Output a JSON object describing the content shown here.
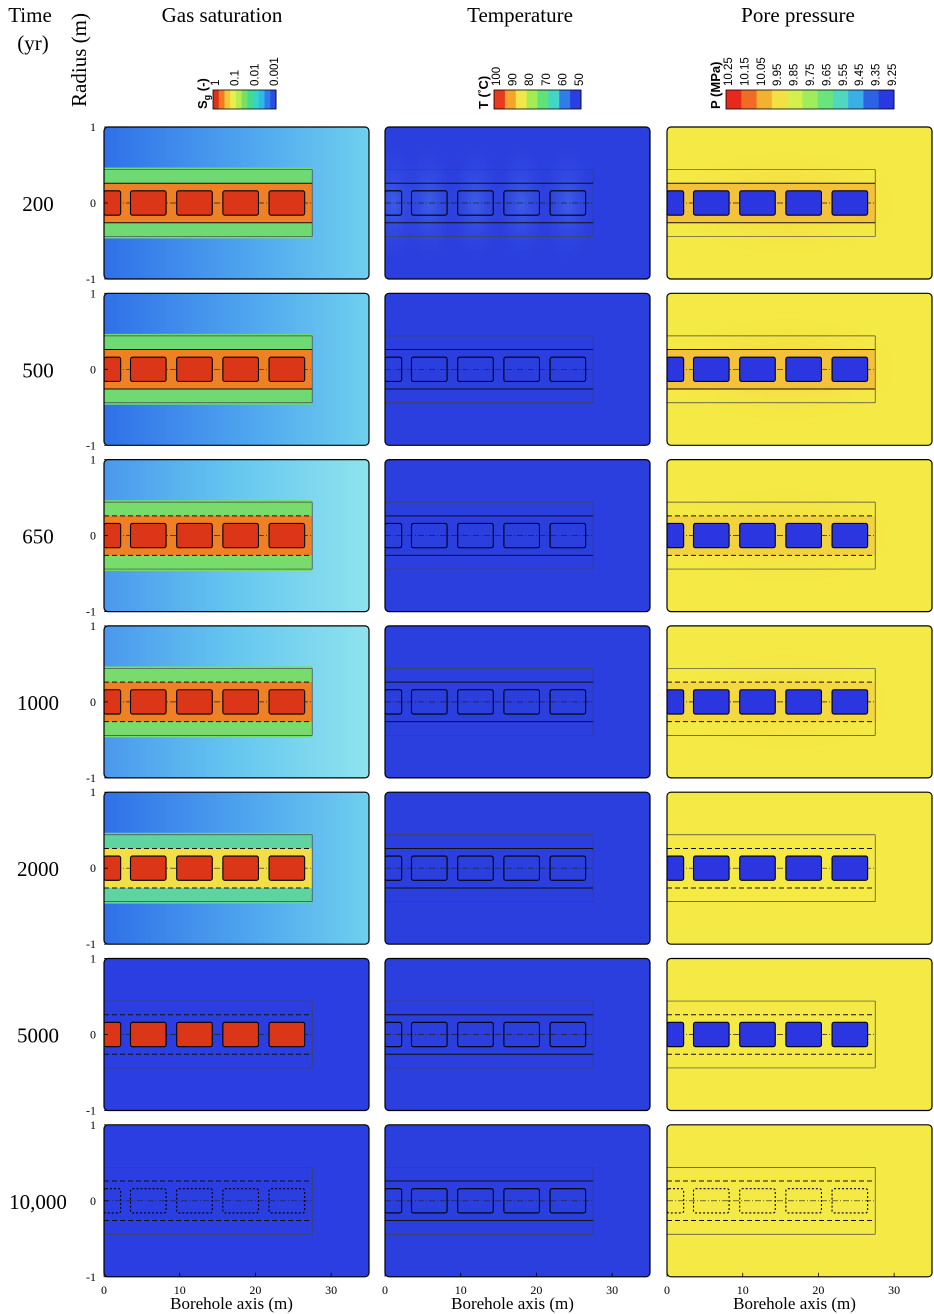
{
  "header": {
    "time_label": "Time",
    "time_unit": "(yr)",
    "radius_label": "Radius (m)",
    "xlabel": "Borehole axis (m)"
  },
  "columns": [
    {
      "title": "Gas saturation",
      "legend_label": "S",
      "legend_sub": "g",
      "legend_unit": " (-)",
      "ticks": [
        "1",
        "0.1",
        "0.01",
        "0.001"
      ],
      "colors": [
        "#e03018",
        "#f27a20",
        "#f3c73a",
        "#e8ef4c",
        "#b5ed52",
        "#78e065",
        "#3edd90",
        "#35d3c8",
        "#31b8ea",
        "#2e7dea",
        "#2a4fe4"
      ],
      "background_gradient": [
        "#2f70e8",
        "#6fd0ee"
      ],
      "fill": "#dc3618",
      "sleeve": "#6fda74"
    },
    {
      "title": "Temperature",
      "legend_label": "T (",
      "legend_sub": "°",
      "legend_unit": "C)",
      "ticks": [
        "100",
        "90",
        "80",
        "70",
        "60",
        "50"
      ],
      "colors": [
        "#e83a1c",
        "#f6a22b",
        "#f3e64a",
        "#a3ec52",
        "#5fe277",
        "#42d7c5",
        "#2f7de9",
        "#2a3ee2"
      ],
      "background": "#2b3ede",
      "fill": "none"
    },
    {
      "title": "Pore pressure",
      "legend_label": "P (MPa)",
      "ticks": [
        "10.25",
        "10.15",
        "10.05",
        "9.95",
        "9.85",
        "9.75",
        "9.65",
        "9.55",
        "9.45",
        "9.35",
        "9.25"
      ],
      "colors": [
        "#e8281c",
        "#f06b24",
        "#f4b02f",
        "#f3e043",
        "#d5ef4f",
        "#a0ec5a",
        "#6ae47b",
        "#4ed8bd",
        "#39aee7",
        "#2c63e5",
        "#2a38e0"
      ],
      "background": "#f5ea45",
      "fill": "#2c36e0"
    }
  ],
  "times": [
    "200",
    "500",
    "650",
    "1000",
    "2000",
    "5000",
    "10,000"
  ],
  "y_ticks": [
    "1",
    "0",
    "-1"
  ],
  "x_ticks": [
    "0",
    "10",
    "20",
    "30"
  ],
  "x_range": [
    0,
    35
  ],
  "y_range": [
    -1,
    1
  ],
  "canisters": {
    "x_ranges": [
      [
        0,
        2.2
      ],
      [
        3.5,
        8.2
      ],
      [
        9.6,
        14.3
      ],
      [
        15.7,
        20.4
      ],
      [
        21.8,
        26.5
      ]
    ],
    "y_range": [
      -0.16,
      0.16
    ],
    "sleeve_x": 27.5,
    "sleeve_y": 0.26,
    "outer_y": 0.44
  }
}
